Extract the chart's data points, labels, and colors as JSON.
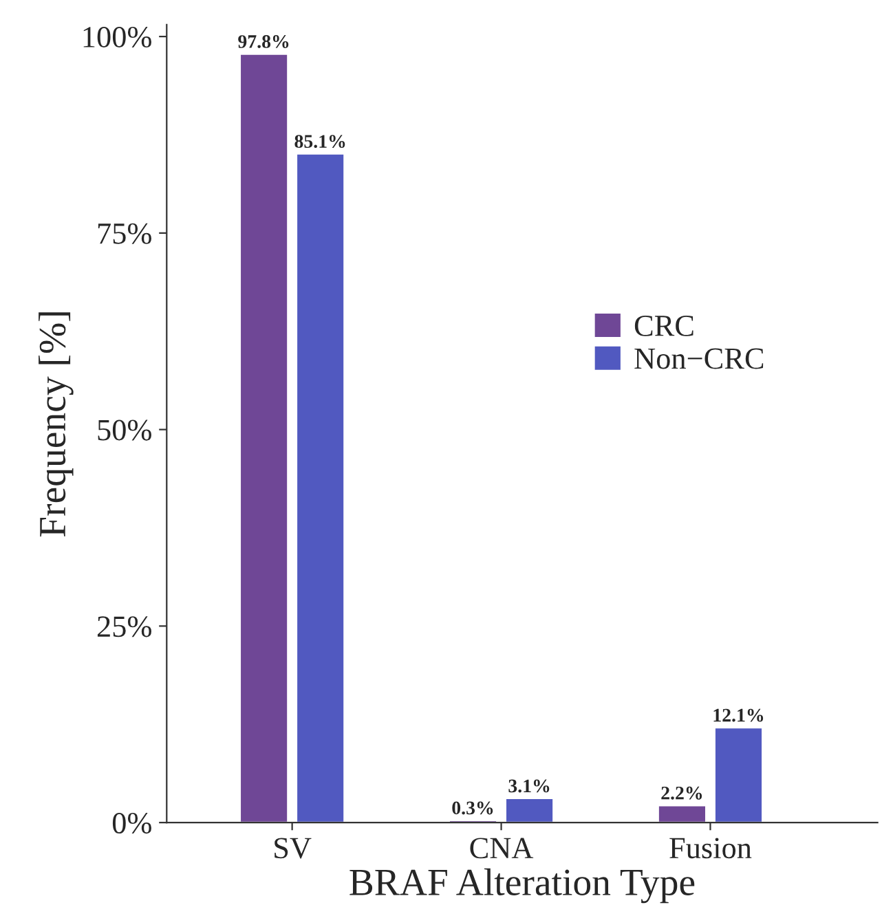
{
  "chart_data": {
    "type": "bar",
    "xlabel": "BRAF Alteration Type",
    "ylabel": "Frequency [%]",
    "categories": [
      "SV",
      "CNA",
      "Fusion"
    ],
    "series": [
      {
        "name": "CRC",
        "color": "#6f4796",
        "values": [
          97.8,
          0.3,
          2.2
        ],
        "value_labels": [
          "97.8%",
          "0.3%",
          "2.2%"
        ]
      },
      {
        "name": "Non−CRC",
        "color": "#5159c0",
        "values": [
          85.1,
          3.1,
          12.1
        ],
        "value_labels": [
          "85.1%",
          "3.1%",
          "12.1%"
        ]
      }
    ],
    "ylim": [
      0,
      101.5
    ],
    "yticks": [
      {
        "value": 0,
        "label": "0%"
      },
      {
        "value": 25,
        "label": "25%"
      },
      {
        "value": 50,
        "label": "50%"
      },
      {
        "value": 75,
        "label": "75%"
      },
      {
        "value": 100,
        "label": "100%"
      }
    ],
    "grid": false,
    "legend": "right"
  }
}
